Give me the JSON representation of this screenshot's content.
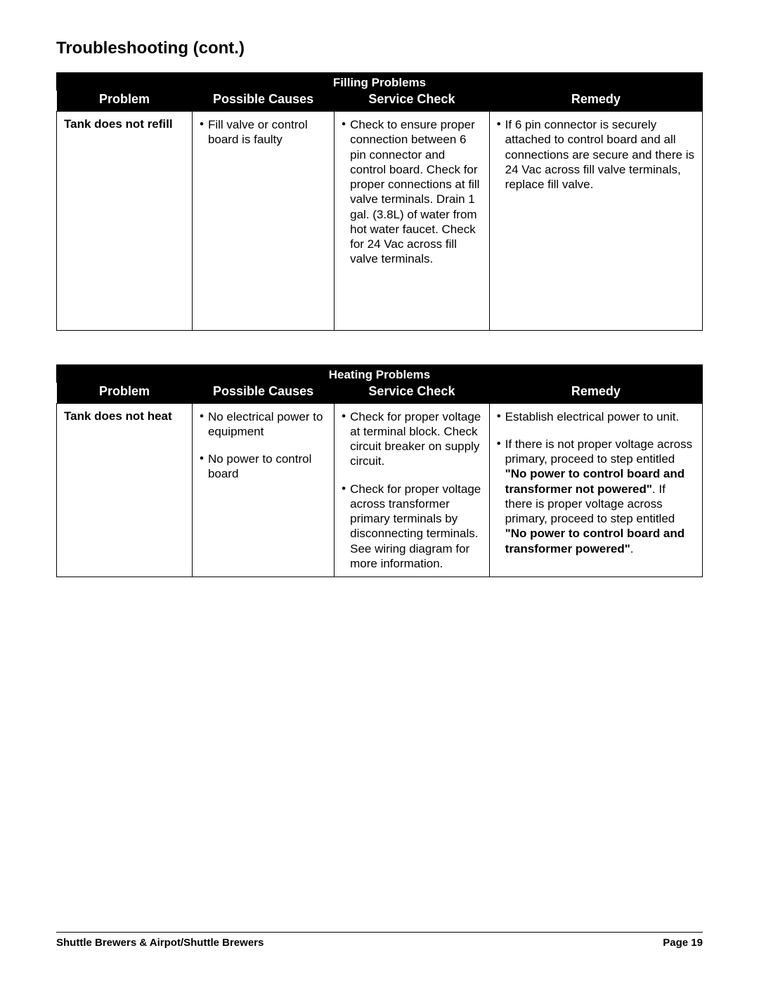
{
  "page": {
    "title": "Troubleshooting (cont.)",
    "footer_left": "Shuttle Brewers & Airpot/Shuttle Brewers",
    "footer_right": "Page 19"
  },
  "colors": {
    "header_bg": "#000000",
    "header_fg": "#ffffff",
    "border": "#000000",
    "page_bg": "#ffffff",
    "text": "#000000"
  },
  "columns": [
    "Problem",
    "Possible Causes",
    "Service Check",
    "Remedy"
  ],
  "table1": {
    "section_title": "Filling Problems",
    "problem": "Tank does not refill",
    "cause1": "Fill valve or control board is faulty",
    "service1": "Check to ensure proper connection between 6 pin connector and control board. Check for proper connections at fill valve terminals. Drain 1 gal. (3.8L) of water from hot water faucet. Check for 24 Vac across fill valve terminals.",
    "remedy1": "If 6 pin connector is securely attached to control board and all connections are secure and there is 24 Vac across fill valve terminals, replace fill valve."
  },
  "table2": {
    "section_title": "Heating Problems",
    "problem": "Tank does not heat",
    "cause1": "No electrical power to equipment",
    "service1": "Check for proper voltage at terminal block. Check circuit breaker on supply circuit.",
    "remedy1": "Establish electrical power to unit.",
    "cause2": "No power to control board",
    "service2": "Check for proper voltage across transformer primary terminals by disconnecting terminals. See wiring diagram for more information.",
    "remedy2_a": "If there is not proper voltage across primary, proceed to step entitled ",
    "remedy2_bold1": "\"No power to control board and transformer not powered\"",
    "remedy2_b": ". If there is proper voltage across primary, proceed to step entitled ",
    "remedy2_bold2": "\"No power to control board and transformer powered\"",
    "remedy2_c": "."
  }
}
